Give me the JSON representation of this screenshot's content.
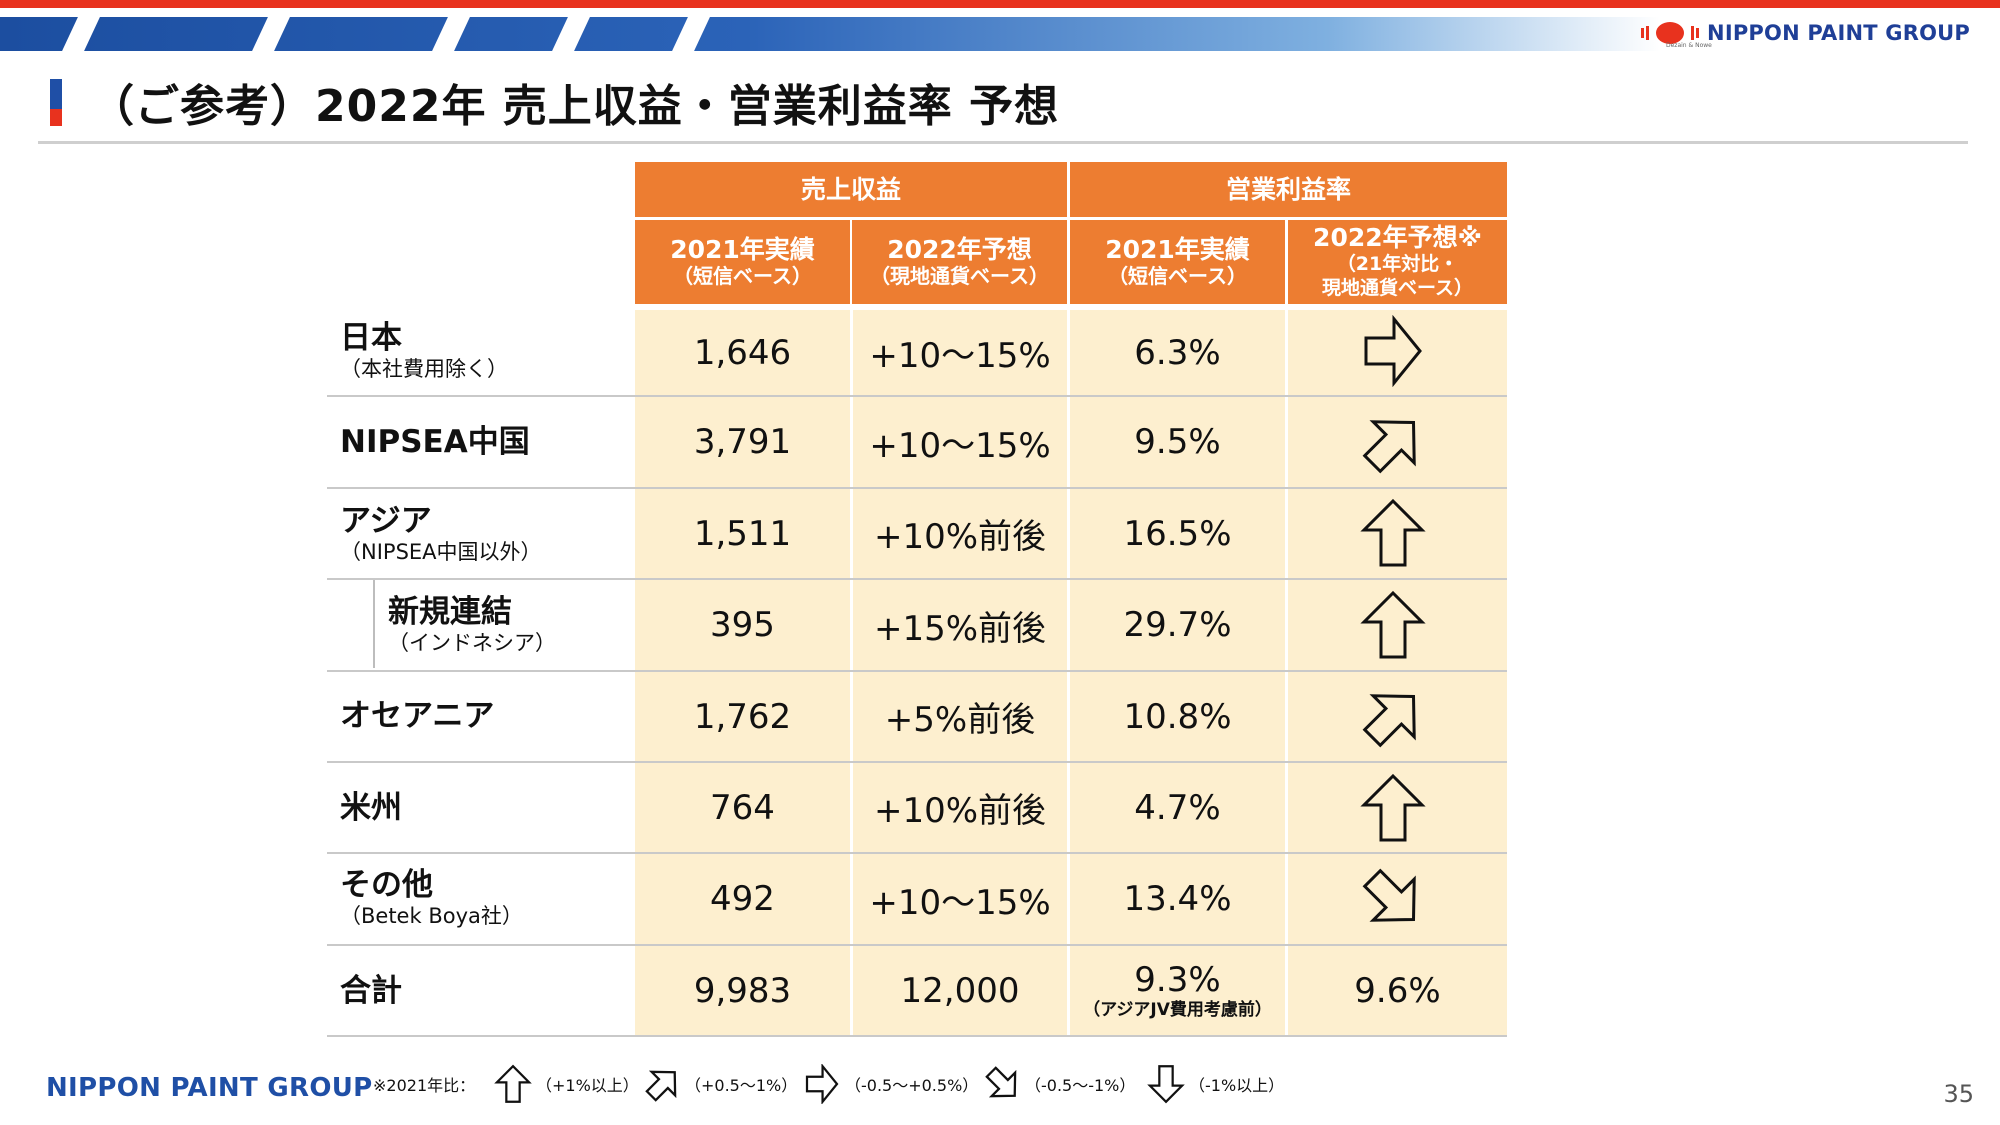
{
  "header": {
    "brand": "NIPPON PAINT GROUP",
    "brand_sub": "Dezain & Nowe"
  },
  "title": "（ご参考）2022年 売上収益・営業利益率 予想",
  "table": {
    "group_headers": [
      "売上収益",
      "営業利益率"
    ],
    "col_headers": [
      {
        "line1": "2021年実績",
        "line2": "（短信ベース）"
      },
      {
        "line1": "2022年予想",
        "line2": "（現地通貨ベース）"
      },
      {
        "line1": "2021年実績",
        "line2": "（短信ベース）"
      },
      {
        "line1": "2022年予想※",
        "line2": "（21年対比・",
        "line3": "現地通貨ベース）"
      }
    ],
    "rows": [
      {
        "label": "日本",
        "sublabel": "（本社費用除く）",
        "rev2021": "1,646",
        "rev2022": "+10～15%",
        "op2021": "6.3%",
        "op2022_arrow": "right"
      },
      {
        "label": "NIPSEA中国",
        "sublabel": "",
        "rev2021": "3,791",
        "rev2022": "+10～15%",
        "op2021": "9.5%",
        "op2022_arrow": "up-right"
      },
      {
        "label": "アジア",
        "sublabel": "（NIPSEA中国以外）",
        "rev2021": "1,511",
        "rev2022": "+10%前後",
        "op2021": "16.5%",
        "op2022_arrow": "up"
      },
      {
        "label": "新規連結",
        "sublabel": "（インドネシア）",
        "rev2021": "395",
        "rev2022": "+15%前後",
        "op2021": "29.7%",
        "op2022_arrow": "up"
      },
      {
        "label": "オセアニア",
        "sublabel": "",
        "rev2021": "1,762",
        "rev2022": "+5%前後",
        "op2021": "10.8%",
        "op2022_arrow": "up-right"
      },
      {
        "label": "米州",
        "sublabel": "",
        "rev2021": "764",
        "rev2022": "+10%前後",
        "op2021": "4.7%",
        "op2022_arrow": "up"
      },
      {
        "label": "その他",
        "sublabel": "（Betek Boya社）",
        "rev2021": "492",
        "rev2022": "+10～15%",
        "op2021": "13.4%",
        "op2022_arrow": "down-right"
      }
    ],
    "total": {
      "label": "合計",
      "rev2021": "9,983",
      "rev2022": "12,000",
      "op2021": "9.3%",
      "op2021_note": "（アジアJV費用考慮前）",
      "op2022": "9.6%"
    }
  },
  "footer": {
    "brand": "NIPPON PAINT GROUP",
    "legend_prefix": "※2021年比：",
    "legend": [
      {
        "icon": "up-arrow-icon",
        "text": "（+1%以上）"
      },
      {
        "icon": "up-right-arrow-icon",
        "text": "（+0.5～1%）"
      },
      {
        "icon": "right-arrow-icon",
        "text": "（-0.5～+0.5%）"
      },
      {
        "icon": "down-right-arrow-icon",
        "text": "（-0.5～-1%）"
      },
      {
        "icon": "down-arrow-icon",
        "text": "（-1%以上）"
      }
    ],
    "page_number": "35"
  },
  "colors": {
    "accent_red": "#e8321e",
    "brand_blue": "#1f4fa6",
    "header_orange": "#ed7d31",
    "cell_cream": "#fdefcf"
  }
}
